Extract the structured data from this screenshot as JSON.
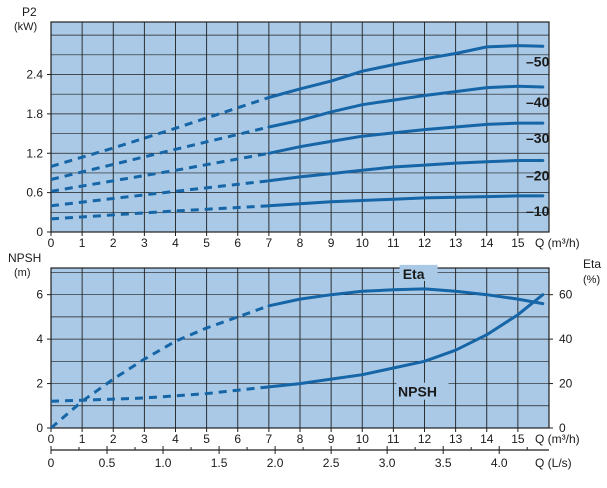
{
  "chart_data": [
    {
      "type": "line",
      "ylabel": "P2",
      "yunit": "(kW)",
      "xlabel": "Q (m³/h)",
      "xlim": [
        0,
        16
      ],
      "ylim": [
        0,
        3.2
      ],
      "xticks": [
        "0",
        "1",
        "2",
        "3",
        "4",
        "5",
        "6",
        "7",
        "8",
        "9",
        "10",
        "11",
        "12",
        "13",
        "14",
        "15",
        "Q (m³/h)"
      ],
      "yticks": [
        "0",
        "0.6",
        "1.2",
        "1.8",
        "2.4"
      ],
      "grid": true,
      "background": "#a9c9e6",
      "line_color": "#1565a7",
      "series": [
        {
          "name": "–50",
          "x": [
            0,
            2,
            4,
            7,
            8,
            9,
            10,
            11,
            12,
            13,
            14,
            15,
            15.8
          ],
          "y": [
            1.0,
            1.28,
            1.58,
            2.05,
            2.18,
            2.3,
            2.45,
            2.55,
            2.64,
            2.72,
            2.82,
            2.84,
            2.83
          ],
          "dashed_until": 7
        },
        {
          "name": "–40",
          "x": [
            0,
            2,
            4,
            7,
            8,
            9,
            10,
            11,
            12,
            13,
            14,
            15,
            15.8
          ],
          "y": [
            0.8,
            1.03,
            1.26,
            1.6,
            1.7,
            1.83,
            1.94,
            2.01,
            2.08,
            2.14,
            2.2,
            2.22,
            2.21
          ],
          "dashed_until": 7
        },
        {
          "name": "–30",
          "x": [
            0,
            2,
            4,
            7,
            8,
            9,
            10,
            11,
            12,
            13,
            14,
            15,
            15.8
          ],
          "y": [
            0.62,
            0.78,
            0.94,
            1.2,
            1.3,
            1.38,
            1.46,
            1.51,
            1.56,
            1.6,
            1.64,
            1.66,
            1.66
          ],
          "dashed_until": 7
        },
        {
          "name": "–20",
          "x": [
            0,
            2,
            4,
            7,
            8,
            9,
            10,
            11,
            12,
            13,
            14,
            15,
            15.8
          ],
          "y": [
            0.4,
            0.51,
            0.62,
            0.78,
            0.84,
            0.89,
            0.94,
            0.99,
            1.02,
            1.05,
            1.07,
            1.09,
            1.09
          ],
          "dashed_until": 7
        },
        {
          "name": "–10",
          "x": [
            0,
            2,
            4,
            7,
            8,
            9,
            10,
            11,
            12,
            13,
            14,
            15,
            15.8
          ],
          "y": [
            0.2,
            0.26,
            0.32,
            0.4,
            0.43,
            0.46,
            0.48,
            0.5,
            0.52,
            0.53,
            0.54,
            0.55,
            0.55
          ],
          "dashed_until": 7
        }
      ]
    },
    {
      "type": "line",
      "ylabel": "NPSH",
      "yunit": "(m)",
      "y2label": "Eta",
      "y2unit": "(%)",
      "xlabel": "Q (m³/h)",
      "x2label": "Q (L/s)",
      "xlim": [
        0,
        16
      ],
      "ylim": [
        0,
        7.2
      ],
      "y2lim": [
        0,
        72
      ],
      "xticks": [
        "0",
        "1",
        "2",
        "3",
        "4",
        "5",
        "6",
        "7",
        "8",
        "9",
        "10",
        "11",
        "12",
        "13",
        "14",
        "15",
        "Q (m³/h)"
      ],
      "yticks": [
        "0",
        "2",
        "4",
        "6"
      ],
      "y2ticks": [
        "0",
        "20",
        "40",
        "60"
      ],
      "x2ticks": [
        "0",
        "0.5",
        "1.0",
        "1.5",
        "2.0",
        "2.5",
        "3.0",
        "3.5",
        "4.0",
        "Q (L/s)"
      ],
      "grid": true,
      "background": "#a9c9e6",
      "line_color": "#1565a7",
      "series": [
        {
          "name": "Eta",
          "axis": "right",
          "x": [
            0,
            1,
            2,
            3,
            4,
            5,
            6,
            7,
            8,
            9,
            10,
            11,
            12,
            13,
            14,
            15,
            15.8
          ],
          "y": [
            0,
            12,
            22,
            31,
            39,
            45,
            50,
            55,
            58,
            60,
            61.5,
            62.2,
            62.6,
            61.5,
            60,
            58,
            56
          ],
          "dashed_until": 7
        },
        {
          "name": "NPSH",
          "axis": "left",
          "x": [
            0,
            1,
            2,
            3,
            4,
            5,
            6,
            7,
            8,
            9,
            10,
            11,
            12,
            13,
            14,
            15,
            15.8
          ],
          "y": [
            1.2,
            1.25,
            1.3,
            1.35,
            1.45,
            1.55,
            1.7,
            1.85,
            2.0,
            2.2,
            2.4,
            2.7,
            3.0,
            3.5,
            4.2,
            5.1,
            6.0
          ],
          "dashed_until": 7
        }
      ]
    }
  ]
}
